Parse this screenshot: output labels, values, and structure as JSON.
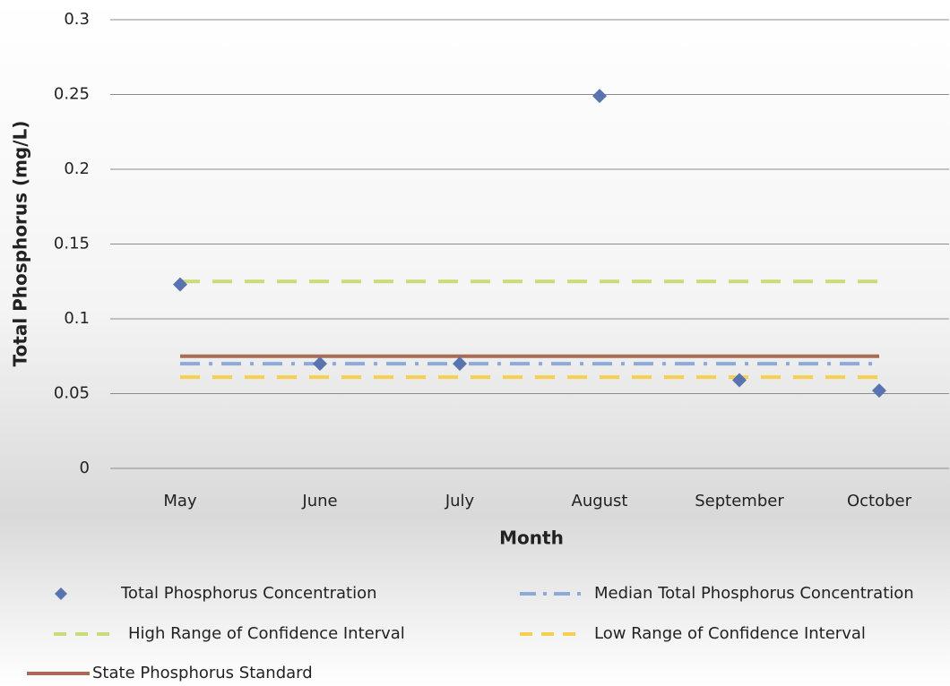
{
  "chart_data": {
    "type": "line",
    "y_label": "Total Phosphorus (mg/L)",
    "x_label": "Month",
    "categories": [
      "May",
      "June",
      "July",
      "August",
      "September",
      "October"
    ],
    "ylim": [
      0,
      0.3
    ],
    "yticks": [
      0,
      0.05,
      0.1,
      0.15,
      0.2,
      0.25,
      0.3
    ],
    "grid": true,
    "series": [
      {
        "name": "Total Phosphorus Concentration",
        "color": "#5873b0",
        "style": "marker",
        "values": [
          0.123,
          0.07,
          0.07,
          0.249,
          0.059,
          0.052
        ]
      },
      {
        "name": "Median Total Phosphorus Concentration",
        "color": "#8eaad6",
        "style": "dashdot",
        "values": [
          0.07,
          0.07,
          0.07,
          0.07,
          0.07,
          0.07
        ]
      },
      {
        "name": "High Range of Confidence Interval",
        "color": "#c9dc7a",
        "style": "dash",
        "values": [
          0.125,
          0.125,
          0.125,
          0.125,
          0.125,
          0.125
        ]
      },
      {
        "name": "Low Range of Confidence Interval",
        "color": "#f7cf50",
        "style": "dash",
        "values": [
          0.061,
          0.061,
          0.061,
          0.061,
          0.061,
          0.061
        ]
      },
      {
        "name": "State Phosphorus Standard",
        "color": "#a86c54",
        "style": "solid",
        "values": [
          0.075,
          0.075,
          0.075,
          0.075,
          0.075,
          0.075
        ]
      }
    ]
  }
}
